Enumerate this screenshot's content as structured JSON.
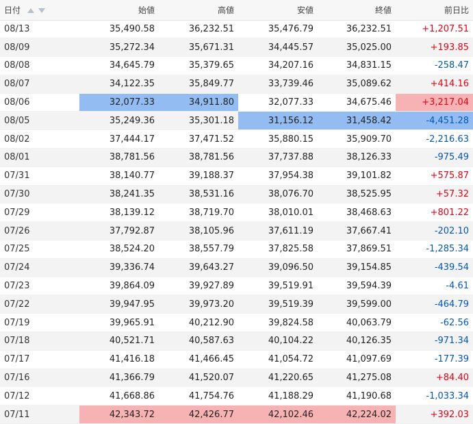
{
  "header": {
    "date": "日付",
    "open": "始値",
    "high": "高値",
    "low": "安値",
    "close": "終値",
    "change": "前日比",
    "sort_icons": [
      "sort-ascending-icon",
      "sort-descending-icon"
    ]
  },
  "colors": {
    "positive": "#e60012",
    "negative": "#0057b8",
    "highlight_blue": "#93bdf2",
    "highlight_red": "#f7b3b3"
  },
  "rows": [
    {
      "date": "08/13",
      "open": "35,490.58",
      "high": "36,232.51",
      "low": "35,476.79",
      "close": "36,232.51",
      "change": "+1,207.51"
    },
    {
      "date": "08/09",
      "open": "35,272.34",
      "high": "35,671.31",
      "low": "34,445.57",
      "close": "35,025.00",
      "change": "+193.85"
    },
    {
      "date": "08/08",
      "open": "34,645.79",
      "high": "35,379.65",
      "low": "34,207.16",
      "close": "34,831.15",
      "change": "-258.47"
    },
    {
      "date": "08/07",
      "open": "34,122.35",
      "high": "35,849.77",
      "low": "33,739.46",
      "close": "35,089.62",
      "change": "+414.16"
    },
    {
      "date": "08/06",
      "open": "32,077.33",
      "high": "34,911.80",
      "low": "32,077.33",
      "close": "34,675.46",
      "change": "+3,217.04",
      "hl": {
        "open": "blue",
        "high": "blue",
        "change": "red"
      }
    },
    {
      "date": "08/05",
      "open": "35,249.36",
      "high": "35,301.18",
      "low": "31,156.12",
      "close": "31,458.42",
      "change": "-4,451.28",
      "hl": {
        "low": "blue",
        "close": "blue",
        "change": "blue"
      }
    },
    {
      "date": "08/02",
      "open": "37,444.17",
      "high": "37,471.52",
      "low": "35,880.15",
      "close": "35,909.70",
      "change": "-2,216.63"
    },
    {
      "date": "08/01",
      "open": "38,781.56",
      "high": "38,781.56",
      "low": "37,737.88",
      "close": "38,126.33",
      "change": "-975.49"
    },
    {
      "date": "07/31",
      "open": "38,140.77",
      "high": "39,188.37",
      "low": "37,954.38",
      "close": "39,101.82",
      "change": "+575.87"
    },
    {
      "date": "07/30",
      "open": "38,241.35",
      "high": "38,531.16",
      "low": "38,076.70",
      "close": "38,525.95",
      "change": "+57.32"
    },
    {
      "date": "07/29",
      "open": "38,139.12",
      "high": "38,719.70",
      "low": "38,010.01",
      "close": "38,468.63",
      "change": "+801.22"
    },
    {
      "date": "07/26",
      "open": "37,792.87",
      "high": "38,105.96",
      "low": "37,611.19",
      "close": "37,667.41",
      "change": "-202.10"
    },
    {
      "date": "07/25",
      "open": "38,524.20",
      "high": "38,557.79",
      "low": "37,825.58",
      "close": "37,869.51",
      "change": "-1,285.34"
    },
    {
      "date": "07/24",
      "open": "39,336.74",
      "high": "39,643.27",
      "low": "39,096.50",
      "close": "39,154.85",
      "change": "-439.54"
    },
    {
      "date": "07/23",
      "open": "39,864.09",
      "high": "39,927.89",
      "low": "39,519.91",
      "close": "39,594.39",
      "change": "-4.61"
    },
    {
      "date": "07/22",
      "open": "39,947.95",
      "high": "39,973.20",
      "low": "39,519.39",
      "close": "39,599.00",
      "change": "-464.79"
    },
    {
      "date": "07/19",
      "open": "39,965.91",
      "high": "40,212.90",
      "low": "39,824.58",
      "close": "40,063.79",
      "change": "-62.56"
    },
    {
      "date": "07/18",
      "open": "40,521.71",
      "high": "40,587.63",
      "low": "40,104.22",
      "close": "40,126.35",
      "change": "-971.34"
    },
    {
      "date": "07/17",
      "open": "41,416.18",
      "high": "41,466.45",
      "low": "41,054.72",
      "close": "41,097.69",
      "change": "-177.39"
    },
    {
      "date": "07/16",
      "open": "41,366.79",
      "high": "41,520.07",
      "low": "41,220.65",
      "close": "41,275.08",
      "change": "+84.40"
    },
    {
      "date": "07/12",
      "open": "41,668.86",
      "high": "41,754.76",
      "low": "41,188.29",
      "close": "41,190.68",
      "change": "-1,033.34"
    },
    {
      "date": "07/11",
      "open": "42,343.72",
      "high": "42,426.77",
      "low": "42,102.46",
      "close": "42,224.02",
      "change": "+392.03",
      "hl": {
        "open": "red",
        "high": "red",
        "low": "red",
        "close": "red"
      }
    }
  ]
}
